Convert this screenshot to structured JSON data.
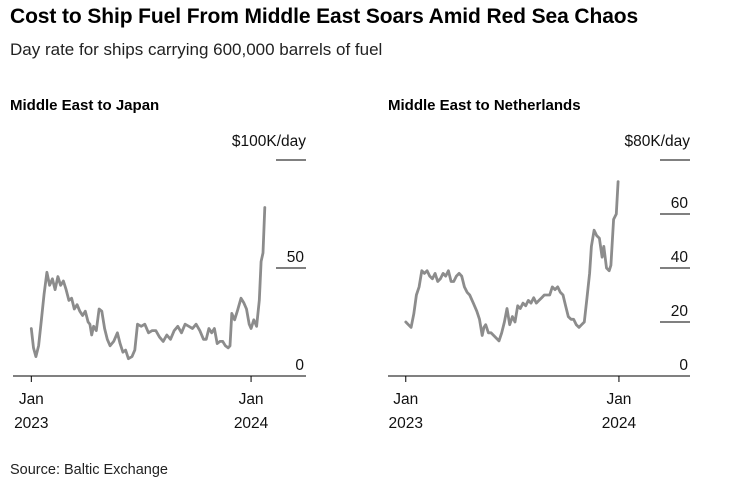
{
  "header": {
    "title": "Cost to Ship Fuel From Middle East Soars Amid Red Sea Chaos",
    "subtitle": "Day rate for ships carrying 600,000 barrels of fuel"
  },
  "footer": {
    "source": "Source: Baltic Exchange"
  },
  "colors": {
    "line": "#8c8c8c",
    "axis": "#000000",
    "text": "#111111"
  },
  "chart_data": [
    {
      "type": "line",
      "title": "Middle East to Japan",
      "unit_label": "$100K/day",
      "y_ticks": [
        0,
        50
      ],
      "ylim": [
        0,
        100
      ],
      "x_ticks": [
        {
          "t": 0,
          "label": [
            "Jan",
            "2023"
          ]
        },
        {
          "t": 12,
          "label": [
            "Jan",
            "2024"
          ]
        }
      ],
      "xlim": [
        -1.0,
        15.0
      ],
      "grid": false,
      "series": [
        {
          "values": [
            [
              0.0,
              22
            ],
            [
              0.12,
              13
            ],
            [
              0.25,
              9
            ],
            [
              0.4,
              14
            ],
            [
              0.55,
              26
            ],
            [
              0.7,
              38
            ],
            [
              0.85,
              48
            ],
            [
              1.0,
              42
            ],
            [
              1.15,
              45
            ],
            [
              1.3,
              40
            ],
            [
              1.45,
              46
            ],
            [
              1.6,
              42
            ],
            [
              1.75,
              44
            ],
            [
              1.9,
              40
            ],
            [
              2.05,
              35
            ],
            [
              2.2,
              36
            ],
            [
              2.35,
              31
            ],
            [
              2.5,
              33
            ],
            [
              2.65,
              30
            ],
            [
              2.8,
              28
            ],
            [
              2.95,
              30
            ],
            [
              3.1,
              25
            ],
            [
              3.2,
              24
            ],
            [
              3.3,
              19
            ],
            [
              3.4,
              23
            ],
            [
              3.55,
              21
            ],
            [
              3.7,
              31
            ],
            [
              3.85,
              30
            ],
            [
              4.0,
              22
            ],
            [
              4.15,
              17
            ],
            [
              4.3,
              14
            ],
            [
              4.5,
              16
            ],
            [
              4.7,
              20
            ],
            [
              4.85,
              15
            ],
            [
              5.0,
              11
            ],
            [
              5.15,
              12
            ],
            [
              5.3,
              8
            ],
            [
              5.5,
              9
            ],
            [
              5.65,
              12
            ],
            [
              5.8,
              24
            ],
            [
              6.0,
              23
            ],
            [
              6.2,
              24
            ],
            [
              6.4,
              20
            ],
            [
              6.6,
              21
            ],
            [
              6.8,
              21
            ],
            [
              7.0,
              18
            ],
            [
              7.2,
              16
            ],
            [
              7.4,
              19
            ],
            [
              7.6,
              17
            ],
            [
              7.8,
              21
            ],
            [
              8.0,
              23
            ],
            [
              8.2,
              20
            ],
            [
              8.4,
              24
            ],
            [
              8.6,
              23
            ],
            [
              8.8,
              22
            ],
            [
              9.0,
              24
            ],
            [
              9.2,
              21
            ],
            [
              9.4,
              17
            ],
            [
              9.55,
              17
            ],
            [
              9.7,
              22
            ],
            [
              9.85,
              20
            ],
            [
              10.0,
              22
            ],
            [
              10.15,
              15
            ],
            [
              10.3,
              16
            ],
            [
              10.45,
              16
            ],
            [
              10.6,
              14
            ],
            [
              10.75,
              13
            ],
            [
              10.85,
              14
            ],
            [
              10.95,
              29
            ],
            [
              11.1,
              26
            ],
            [
              11.25,
              30
            ],
            [
              11.45,
              36
            ],
            [
              11.6,
              34
            ],
            [
              11.75,
              31
            ],
            [
              11.9,
              24
            ],
            [
              12.0,
              22
            ],
            [
              12.15,
              26
            ],
            [
              12.3,
              23
            ],
            [
              12.45,
              35
            ],
            [
              12.55,
              53
            ],
            [
              12.65,
              57
            ],
            [
              12.75,
              78
            ]
          ]
        }
      ]
    },
    {
      "type": "line",
      "title": "Middle East to Netherlands",
      "unit_label": "$80K/day",
      "y_ticks": [
        0,
        20,
        40,
        60
      ],
      "ylim": [
        0,
        80
      ],
      "x_ticks": [
        {
          "t": 0,
          "label": [
            "Jan",
            "2023"
          ]
        },
        {
          "t": 12,
          "label": [
            "Jan",
            "2024"
          ]
        }
      ],
      "xlim": [
        -1.0,
        16.0
      ],
      "grid": false,
      "series": [
        {
          "values": [
            [
              0.0,
              20
            ],
            [
              0.15,
              19
            ],
            [
              0.3,
              18
            ],
            [
              0.45,
              23
            ],
            [
              0.6,
              30
            ],
            [
              0.75,
              33
            ],
            [
              0.9,
              39
            ],
            [
              1.05,
              38
            ],
            [
              1.2,
              39
            ],
            [
              1.35,
              37
            ],
            [
              1.5,
              36
            ],
            [
              1.65,
              38
            ],
            [
              1.8,
              35
            ],
            [
              1.95,
              36
            ],
            [
              2.1,
              38
            ],
            [
              2.25,
              37
            ],
            [
              2.4,
              39
            ],
            [
              2.55,
              35
            ],
            [
              2.7,
              35
            ],
            [
              2.85,
              37
            ],
            [
              3.0,
              38
            ],
            [
              3.15,
              37
            ],
            [
              3.3,
              33
            ],
            [
              3.45,
              31
            ],
            [
              3.6,
              30
            ],
            [
              3.8,
              27
            ],
            [
              4.0,
              24
            ],
            [
              4.15,
              21
            ],
            [
              4.3,
              15
            ],
            [
              4.4,
              18
            ],
            [
              4.5,
              19
            ],
            [
              4.65,
              16
            ],
            [
              4.8,
              16
            ],
            [
              4.95,
              15
            ],
            [
              5.1,
              14
            ],
            [
              5.25,
              13
            ],
            [
              5.4,
              16
            ],
            [
              5.55,
              20
            ],
            [
              5.7,
              25
            ],
            [
              5.85,
              19
            ],
            [
              6.0,
              22
            ],
            [
              6.15,
              20
            ],
            [
              6.3,
              26
            ],
            [
              6.45,
              25
            ],
            [
              6.6,
              27
            ],
            [
              6.75,
              26
            ],
            [
              6.9,
              28
            ],
            [
              7.05,
              27
            ],
            [
              7.2,
              29
            ],
            [
              7.35,
              27
            ],
            [
              7.5,
              28
            ],
            [
              7.65,
              29
            ],
            [
              7.8,
              30
            ],
            [
              7.95,
              30
            ],
            [
              8.1,
              30
            ],
            [
              8.25,
              33
            ],
            [
              8.4,
              32
            ],
            [
              8.55,
              33
            ],
            [
              8.7,
              31
            ],
            [
              8.85,
              30
            ],
            [
              9.0,
              26
            ],
            [
              9.15,
              22
            ],
            [
              9.3,
              21
            ],
            [
              9.45,
              21
            ],
            [
              9.6,
              19
            ],
            [
              9.75,
              18
            ],
            [
              9.9,
              19
            ],
            [
              10.05,
              20
            ],
            [
              10.2,
              29
            ],
            [
              10.35,
              38
            ],
            [
              10.45,
              48
            ],
            [
              10.6,
              54
            ],
            [
              10.75,
              52
            ],
            [
              10.9,
              51
            ],
            [
              11.05,
              44
            ],
            [
              11.15,
              48
            ],
            [
              11.3,
              40
            ],
            [
              11.45,
              39
            ],
            [
              11.55,
              41
            ],
            [
              11.7,
              58
            ],
            [
              11.85,
              60
            ],
            [
              11.95,
              72
            ]
          ]
        }
      ]
    }
  ]
}
